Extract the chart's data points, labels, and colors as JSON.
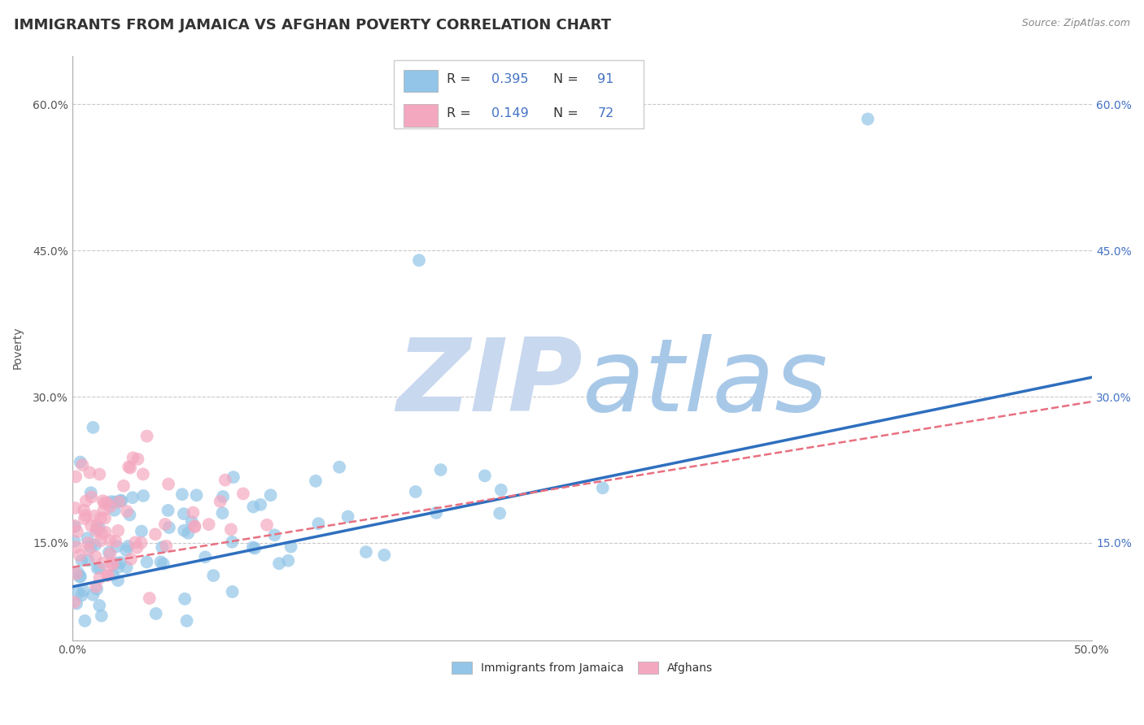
{
  "title": "IMMIGRANTS FROM JAMAICA VS AFGHAN POVERTY CORRELATION CHART",
  "source_text": "Source: ZipAtlas.com",
  "ylabel": "Poverty",
  "xlim": [
    0.0,
    0.5
  ],
  "ylim": [
    0.05,
    0.65
  ],
  "xtick_positions": [
    0.0,
    0.05,
    0.1,
    0.15,
    0.2,
    0.25,
    0.3,
    0.35,
    0.4,
    0.45,
    0.5
  ],
  "xtick_labels": [
    "0.0%",
    "",
    "",
    "",
    "",
    "",
    "",
    "",
    "",
    "",
    "50.0%"
  ],
  "ytick_positions": [
    0.15,
    0.3,
    0.45,
    0.6
  ],
  "ytick_labels": [
    "15.0%",
    "30.0%",
    "45.0%",
    "60.0%"
  ],
  "jamaica_R": 0.395,
  "jamaica_N": 91,
  "afghan_R": 0.149,
  "afghan_N": 72,
  "jamaica_color": "#92C5E8",
  "afghan_color": "#F4A8C0",
  "jamaica_trend_color": "#2E6FBF",
  "afghan_trend_color": "#E87080",
  "legend_R_color": "#4472C4",
  "watermark_zip_color": "#C8D8EE",
  "watermark_atlas_color": "#A8C8E8",
  "background_color": "#FFFFFF",
  "title_fontsize": 13,
  "tick_fontsize": 10,
  "jamaica_seed": 42,
  "afghan_seed": 7,
  "jam_trend_start_y": 0.105,
  "jam_trend_end_y": 0.32,
  "afg_trend_start_y": 0.125,
  "afg_trend_end_y": 0.295
}
